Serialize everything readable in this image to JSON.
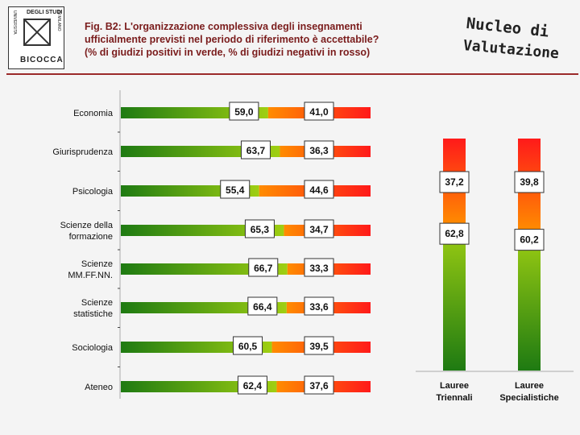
{
  "logo": {
    "top_text": "DEGLI STUDI",
    "left_text": "UNIVERSITA",
    "right_text": "DI MILANO",
    "word": "BICOCCA"
  },
  "title": {
    "line1": "Fig. B2: L'organizzazione complessiva degli insegnamenti",
    "line2": "ufficialmente previsti nel periodo di riferimento è accettabile?",
    "line3": "(% di giudizi positivi in verde, % di giudizi negativi in rosso)"
  },
  "brand": {
    "line1": "Nucleo di",
    "line2": "Valutazione"
  },
  "colors": {
    "positive_dark": "#1e7a12",
    "positive_light": "#9fcf12",
    "negative_orange": "#ff7a00",
    "negative_red": "#ff1a1a",
    "title": "#7a1c1c",
    "rule": "#9b2a2a"
  },
  "chart_data": [
    {
      "type": "bar",
      "orientation": "horizontal",
      "stacked": true,
      "categories": [
        [
          "Economia"
        ],
        [
          "Giurisprudenza"
        ],
        [
          "Psicologia"
        ],
        [
          "Scienze della",
          "formazione"
        ],
        [
          "Scienze",
          "MM.FF.NN."
        ],
        [
          "Scienze",
          "statistiche"
        ],
        [
          "Sociologia"
        ],
        [
          "Ateneo"
        ]
      ],
      "series": [
        {
          "values": [
            59.0,
            63.7,
            55.4,
            65.3,
            66.7,
            66.4,
            60.5,
            62.4
          ]
        },
        {
          "values": [
            41.0,
            36.3,
            44.6,
            34.7,
            33.3,
            33.6,
            39.5,
            37.6
          ]
        }
      ],
      "labels_positive": [
        "59,0",
        "63,7",
        "55,4",
        "65,3",
        "66,7",
        "66,4",
        "60,5",
        "62,4"
      ],
      "labels_negative": [
        "41,0",
        "36,3",
        "44,6",
        "34,7",
        "33,3",
        "33,6",
        "39,5",
        "37,6"
      ],
      "xlim": [
        0,
        100
      ]
    },
    {
      "type": "bar",
      "orientation": "vertical",
      "stacked": true,
      "categories": [
        [
          "Lauree",
          "Triennali"
        ],
        [
          "Lauree",
          "Specialistiche"
        ]
      ],
      "series": [
        {
          "values": [
            62.8,
            60.2
          ]
        },
        {
          "values": [
            37.2,
            39.8
          ]
        }
      ],
      "labels_positive": [
        "62,8",
        "60,2"
      ],
      "labels_negative": [
        "37,2",
        "39,8"
      ],
      "ylim": [
        0,
        100
      ]
    }
  ]
}
